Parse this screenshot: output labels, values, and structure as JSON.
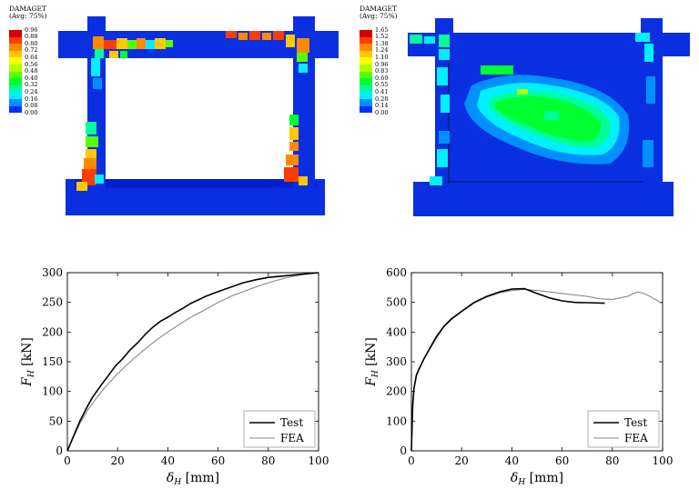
{
  "contour_plots": [
    {
      "legend_title": "DAMAGET",
      "legend_subtitle": "(Avg: 75%)",
      "legend_values": [
        "0.96",
        "0.88",
        "0.80",
        "0.72",
        "0.64",
        "0.56",
        "0.48",
        "0.40",
        "0.32",
        "0.24",
        "0.16",
        "0.08",
        "0.00"
      ]
    },
    {
      "legend_title": "DAMAGET",
      "legend_subtitle": "(Avg: 75%)",
      "legend_values": [
        "1.65",
        "1.52",
        "1.38",
        "1.24",
        "1.10",
        "0.96",
        "0.83",
        "0.69",
        "0.55",
        "0.41",
        "0.28",
        "0.14",
        "0.00"
      ]
    }
  ],
  "legend_colors": [
    "#d40000",
    "#ff3c00",
    "#ff8a00",
    "#ffc800",
    "#f5ff00",
    "#b0ff00",
    "#58ff00",
    "#00ff30",
    "#00ff9a",
    "#00f0ff",
    "#0090ff",
    "#0030ff",
    "#0000c8"
  ],
  "chart_data": [
    {
      "type": "line",
      "title": "",
      "xlabel": "δ_H [mm]",
      "ylabel": "F_H [kN]",
      "xlim": [
        0,
        100
      ],
      "ylim": [
        0,
        300
      ],
      "x_ticks": [
        "0",
        "20",
        "40",
        "60",
        "80",
        "100"
      ],
      "y_ticks": [
        "0",
        "50",
        "100",
        "150",
        "200",
        "250",
        "300"
      ],
      "legend": [
        "Test",
        "FEA"
      ],
      "series": [
        {
          "name": "Test",
          "color": "#000000",
          "x": [
            0,
            2,
            5,
            8,
            10,
            13,
            16,
            19,
            22,
            25,
            28,
            31,
            34,
            37,
            40,
            43,
            46,
            49,
            52,
            55,
            58,
            62,
            66,
            70,
            75,
            80,
            85,
            90,
            95,
            100
          ],
          "y": [
            0,
            20,
            50,
            75,
            90,
            108,
            125,
            142,
            155,
            170,
            182,
            196,
            208,
            218,
            225,
            233,
            240,
            248,
            254,
            260,
            265,
            271,
            277,
            283,
            288,
            292,
            294,
            296,
            298,
            300
          ]
        },
        {
          "name": "FEA",
          "color": "#888888",
          "x": [
            0,
            2,
            5,
            8,
            10,
            15,
            20,
            25,
            30,
            35,
            40,
            45,
            50,
            55,
            60,
            65,
            70,
            75,
            80,
            85,
            90,
            95,
            100
          ],
          "y": [
            0,
            19,
            46,
            68,
            80,
            107,
            130,
            150,
            168,
            185,
            200,
            214,
            227,
            238,
            250,
            260,
            268,
            276,
            283,
            289,
            294,
            298,
            300
          ]
        }
      ]
    },
    {
      "type": "line",
      "title": "",
      "xlabel": "δ_H [mm]",
      "ylabel": "F_H [kN]",
      "xlim": [
        0,
        100
      ],
      "ylim": [
        0,
        600
      ],
      "x_ticks": [
        "0",
        "20",
        "40",
        "60",
        "80",
        "100"
      ],
      "y_ticks": [
        "0",
        "100",
        "200",
        "300",
        "400",
        "500",
        "600"
      ],
      "legend": [
        "Test",
        "FEA"
      ],
      "series": [
        {
          "name": "Test",
          "color": "#000000",
          "x": [
            0,
            0.5,
            1,
            2,
            3,
            5,
            7,
            10,
            13,
            16,
            20,
            25,
            30,
            35,
            40,
            45,
            47,
            50,
            55,
            60,
            65,
            70,
            77
          ],
          "y": [
            0,
            150,
            210,
            255,
            275,
            310,
            340,
            385,
            420,
            445,
            470,
            500,
            520,
            535,
            545,
            546,
            540,
            530,
            515,
            505,
            500,
            499,
            497
          ]
        },
        {
          "name": "FEA",
          "color": "#888888",
          "x": [
            0,
            0.5,
            1,
            2,
            3,
            5,
            7,
            10,
            13,
            16,
            20,
            25,
            30,
            35,
            40,
            45,
            50,
            55,
            60,
            65,
            70,
            75,
            80,
            83,
            86,
            88,
            90,
            92,
            95,
            98,
            100
          ],
          "y": [
            0,
            140,
            205,
            250,
            272,
            308,
            338,
            380,
            418,
            442,
            468,
            497,
            518,
            532,
            540,
            544,
            540,
            535,
            530,
            525,
            520,
            512,
            510,
            515,
            520,
            528,
            535,
            532,
            520,
            505,
            495
          ]
        }
      ]
    }
  ]
}
